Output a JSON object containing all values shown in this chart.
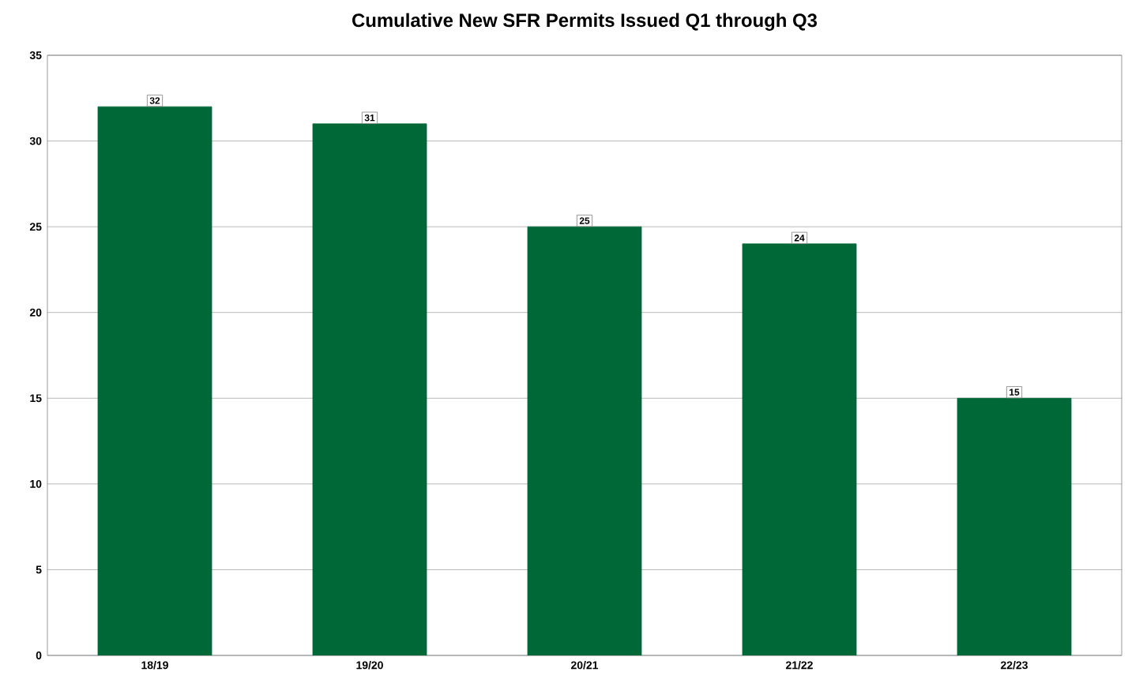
{
  "chart_data": {
    "type": "bar",
    "title": "Cumulative New SFR Permits Issued Q1 through Q3",
    "categories": [
      "18/19",
      "19/20",
      "20/21",
      "21/22",
      "22/23"
    ],
    "values": [
      32,
      31,
      25,
      24,
      15
    ],
    "color": "#006837",
    "ylim": [
      0,
      35
    ],
    "yticks": [
      0,
      5,
      10,
      15,
      20,
      25,
      30,
      35
    ],
    "grid": "y",
    "data_labels": true
  }
}
